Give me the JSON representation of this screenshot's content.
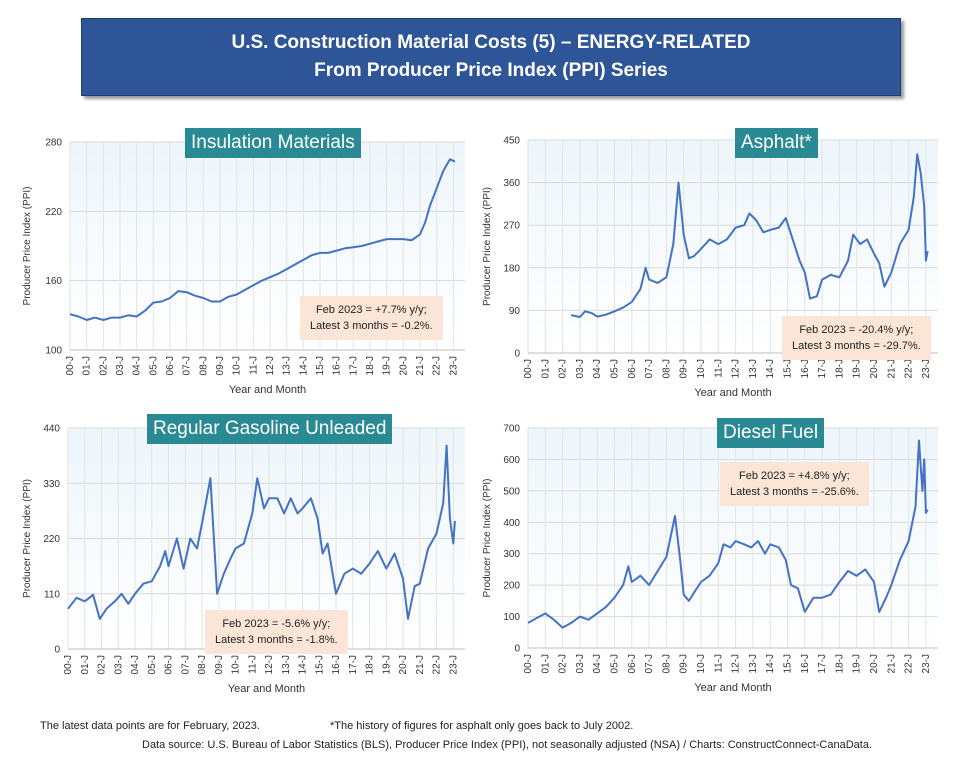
{
  "banner": {
    "line1": "U.S. Construction Material Costs (5) – ENERGY-RELATED",
    "line2": "From Producer Price Index (PPI) Series"
  },
  "footer": {
    "left": "The latest data points are for February, 2023.",
    "asterisk": "*The history of figures for asphalt only goes back to July 2002.",
    "source": "Data source: U.S. Bureau of Labor Statistics (BLS), Producer Price Index (PPI), not seasonally adjusted (NSA) / Charts: ConstructConnect-CanaData."
  },
  "colors": {
    "line": "#4472c4",
    "plot_bg_top": "#eef6fb",
    "plot_bg_bottom": "#ffffff",
    "title_bg": "#2a8a93",
    "note_bg": "#fbe5d6",
    "banner_bg": "#2e5597"
  },
  "chart_data": [
    {
      "type": "line",
      "title": "Insulation Materials",
      "xlabel": "Year and Month",
      "ylabel": "Producer Price Index (PPI)",
      "ylim": [
        100,
        280
      ],
      "yticks": [
        100,
        160,
        220,
        280
      ],
      "xticks": [
        "00-J",
        "01-J",
        "02-J",
        "03-J",
        "04-J",
        "05-J",
        "06-J",
        "07-J",
        "08-J",
        "09-J",
        "10-J",
        "11-J",
        "12-J",
        "13-J",
        "14-J",
        "15-J",
        "16-J",
        "17-J",
        "18-J",
        "19-J",
        "20-J",
        "21-J",
        "22-J",
        "23-J"
      ],
      "note": [
        "Feb 2023 = +7.7% y/y;",
        "Latest 3 months = -0.2%."
      ],
      "series": [
        {
          "points": [
            [
              2000.0,
              131
            ],
            [
              2000.5,
              129
            ],
            [
              2001.0,
              126
            ],
            [
              2001.5,
              128
            ],
            [
              2002.0,
              126
            ],
            [
              2002.5,
              128
            ],
            [
              2003.0,
              128
            ],
            [
              2003.5,
              130
            ],
            [
              2004.0,
              129
            ],
            [
              2004.5,
              134
            ],
            [
              2005.0,
              141
            ],
            [
              2005.5,
              142
            ],
            [
              2006.0,
              145
            ],
            [
              2006.5,
              151
            ],
            [
              2007.0,
              150
            ],
            [
              2007.5,
              147
            ],
            [
              2008.0,
              145
            ],
            [
              2008.5,
              142
            ],
            [
              2009.0,
              142
            ],
            [
              2009.5,
              146
            ],
            [
              2010.0,
              148
            ],
            [
              2010.5,
              152
            ],
            [
              2011.0,
              156
            ],
            [
              2011.5,
              160
            ],
            [
              2012.0,
              163
            ],
            [
              2012.5,
              166
            ],
            [
              2013.0,
              170
            ],
            [
              2013.5,
              174
            ],
            [
              2014.0,
              178
            ],
            [
              2014.5,
              182
            ],
            [
              2015.0,
              184
            ],
            [
              2015.5,
              184
            ],
            [
              2016.0,
              186
            ],
            [
              2016.5,
              188
            ],
            [
              2017.0,
              189
            ],
            [
              2017.5,
              190
            ],
            [
              2018.0,
              192
            ],
            [
              2018.5,
              194
            ],
            [
              2019.0,
              196
            ],
            [
              2019.5,
              196
            ],
            [
              2020.0,
              196
            ],
            [
              2020.5,
              195
            ],
            [
              2021.0,
              200
            ],
            [
              2021.3,
              210
            ],
            [
              2021.6,
              225
            ],
            [
              2022.0,
              240
            ],
            [
              2022.4,
              255
            ],
            [
              2022.8,
              265
            ],
            [
              2023.1,
              263
            ]
          ]
        }
      ]
    },
    {
      "type": "line",
      "title": "Asphalt*",
      "xlabel": "Year and Month",
      "ylabel": "Producer Price Index (PPI)",
      "ylim": [
        0,
        450
      ],
      "yticks": [
        0,
        90,
        180,
        270,
        360,
        450
      ],
      "xticks": [
        "00-J",
        "01-J",
        "02-J",
        "03-J",
        "04-J",
        "05-J",
        "06-J",
        "07-J",
        "08-J",
        "09-J",
        "10-J",
        "11-J",
        "12-J",
        "13-J",
        "14-J",
        "15-J",
        "16-J",
        "17-J",
        "18-J",
        "19-J",
        "20-J",
        "21-J",
        "22-J",
        "23-J"
      ],
      "note": [
        "Feb 2023 = -20.4% y/y;",
        "Latest 3 months = -29.7%."
      ],
      "series": [
        {
          "points": [
            [
              2002.5,
              80
            ],
            [
              2003.0,
              76
            ],
            [
              2003.3,
              88
            ],
            [
              2003.7,
              84
            ],
            [
              2004.0,
              77
            ],
            [
              2004.5,
              81
            ],
            [
              2005.0,
              88
            ],
            [
              2005.5,
              96
            ],
            [
              2006.0,
              108
            ],
            [
              2006.5,
              135
            ],
            [
              2006.8,
              180
            ],
            [
              2007.0,
              155
            ],
            [
              2007.5,
              148
            ],
            [
              2008.0,
              160
            ],
            [
              2008.4,
              230
            ],
            [
              2008.7,
              360
            ],
            [
              2009.0,
              250
            ],
            [
              2009.3,
              200
            ],
            [
              2009.6,
              205
            ],
            [
              2010.0,
              220
            ],
            [
              2010.5,
              240
            ],
            [
              2011.0,
              230
            ],
            [
              2011.5,
              240
            ],
            [
              2012.0,
              265
            ],
            [
              2012.5,
              270
            ],
            [
              2012.8,
              295
            ],
            [
              2013.2,
              280
            ],
            [
              2013.6,
              255
            ],
            [
              2014.0,
              260
            ],
            [
              2014.5,
              265
            ],
            [
              2014.9,
              285
            ],
            [
              2015.3,
              240
            ],
            [
              2015.7,
              195
            ],
            [
              2016.0,
              170
            ],
            [
              2016.3,
              115
            ],
            [
              2016.7,
              120
            ],
            [
              2017.0,
              155
            ],
            [
              2017.5,
              165
            ],
            [
              2018.0,
              160
            ],
            [
              2018.5,
              195
            ],
            [
              2018.8,
              250
            ],
            [
              2019.2,
              230
            ],
            [
              2019.6,
              240
            ],
            [
              2020.0,
              210
            ],
            [
              2020.3,
              190
            ],
            [
              2020.6,
              140
            ],
            [
              2021.0,
              170
            ],
            [
              2021.5,
              230
            ],
            [
              2022.0,
              260
            ],
            [
              2022.3,
              330
            ],
            [
              2022.5,
              420
            ],
            [
              2022.7,
              380
            ],
            [
              2022.9,
              310
            ],
            [
              2023.0,
              195
            ],
            [
              2023.1,
              215
            ]
          ]
        }
      ]
    },
    {
      "type": "line",
      "title": "Regular Gasoline Unleaded",
      "xlabel": "Year and Month",
      "ylabel": "Producer Price Index (PPI)",
      "ylim": [
        0,
        440
      ],
      "yticks": [
        0,
        110,
        220,
        330,
        440
      ],
      "xticks": [
        "00-J",
        "01-J",
        "02-J",
        "03-J",
        "04-J",
        "05-J",
        "06-J",
        "07-J",
        "08-J",
        "09-J",
        "10-J",
        "11-J",
        "12-J",
        "13-J",
        "14-J",
        "15-J",
        "16-J",
        "17-J",
        "18-J",
        "19-J",
        "20-J",
        "21-J",
        "22-J",
        "23-J"
      ],
      "note": [
        "Feb 2023 = -5.6% y/y;",
        "Latest 3 months = -1.8%."
      ],
      "series": [
        {
          "points": [
            [
              2000.0,
              80
            ],
            [
              2000.5,
              102
            ],
            [
              2001.0,
              95
            ],
            [
              2001.5,
              108
            ],
            [
              2001.9,
              60
            ],
            [
              2002.3,
              80
            ],
            [
              2002.8,
              95
            ],
            [
              2003.2,
              110
            ],
            [
              2003.6,
              90
            ],
            [
              2004.0,
              110
            ],
            [
              2004.5,
              130
            ],
            [
              2005.0,
              135
            ],
            [
              2005.5,
              165
            ],
            [
              2005.8,
              195
            ],
            [
              2006.0,
              165
            ],
            [
              2006.5,
              220
            ],
            [
              2006.9,
              160
            ],
            [
              2007.3,
              220
            ],
            [
              2007.7,
              200
            ],
            [
              2008.0,
              250
            ],
            [
              2008.5,
              340
            ],
            [
              2008.9,
              110
            ],
            [
              2009.3,
              150
            ],
            [
              2009.7,
              180
            ],
            [
              2010.0,
              200
            ],
            [
              2010.5,
              210
            ],
            [
              2011.0,
              270
            ],
            [
              2011.3,
              340
            ],
            [
              2011.7,
              280
            ],
            [
              2012.0,
              300
            ],
            [
              2012.5,
              300
            ],
            [
              2012.9,
              270
            ],
            [
              2013.3,
              300
            ],
            [
              2013.7,
              270
            ],
            [
              2014.0,
              280
            ],
            [
              2014.5,
              300
            ],
            [
              2014.9,
              260
            ],
            [
              2015.2,
              190
            ],
            [
              2015.5,
              210
            ],
            [
              2016.0,
              110
            ],
            [
              2016.5,
              150
            ],
            [
              2017.0,
              160
            ],
            [
              2017.5,
              150
            ],
            [
              2018.0,
              170
            ],
            [
              2018.5,
              195
            ],
            [
              2019.0,
              160
            ],
            [
              2019.5,
              190
            ],
            [
              2020.0,
              140
            ],
            [
              2020.3,
              60
            ],
            [
              2020.7,
              125
            ],
            [
              2021.0,
              130
            ],
            [
              2021.5,
              200
            ],
            [
              2022.0,
              230
            ],
            [
              2022.4,
              290
            ],
            [
              2022.6,
              405
            ],
            [
              2022.8,
              260
            ],
            [
              2023.0,
              210
            ],
            [
              2023.1,
              255
            ]
          ]
        }
      ]
    },
    {
      "type": "line",
      "title": "Diesel Fuel",
      "xlabel": "Year and Month",
      "ylabel": "Producer Price Index (PPI)",
      "ylim": [
        0,
        700
      ],
      "yticks": [
        0,
        100,
        200,
        300,
        400,
        500,
        600,
        700
      ],
      "xticks": [
        "00-J",
        "01-J",
        "02-J",
        "03-J",
        "04-J",
        "05-J",
        "06-J",
        "07-J",
        "08-J",
        "09-J",
        "10-J",
        "11-J",
        "12-J",
        "13-J",
        "14-J",
        "15-J",
        "16-J",
        "17-J",
        "18-J",
        "19-J",
        "20-J",
        "21-J",
        "22-J",
        "23-J"
      ],
      "note": [
        "Feb 2023 = +4.8% y/y;",
        "Latest 3 months = -25.6%."
      ],
      "series": [
        {
          "points": [
            [
              2000.0,
              80
            ],
            [
              2000.5,
              95
            ],
            [
              2001.0,
              110
            ],
            [
              2001.5,
              90
            ],
            [
              2002.0,
              65
            ],
            [
              2002.5,
              80
            ],
            [
              2003.0,
              100
            ],
            [
              2003.5,
              90
            ],
            [
              2004.0,
              110
            ],
            [
              2004.5,
              130
            ],
            [
              2005.0,
              160
            ],
            [
              2005.5,
              200
            ],
            [
              2005.8,
              260
            ],
            [
              2006.0,
              210
            ],
            [
              2006.5,
              230
            ],
            [
              2007.0,
              200
            ],
            [
              2007.5,
              245
            ],
            [
              2008.0,
              290
            ],
            [
              2008.5,
              420
            ],
            [
              2008.8,
              280
            ],
            [
              2009.0,
              170
            ],
            [
              2009.3,
              150
            ],
            [
              2009.7,
              185
            ],
            [
              2010.0,
              210
            ],
            [
              2010.5,
              230
            ],
            [
              2011.0,
              270
            ],
            [
              2011.3,
              330
            ],
            [
              2011.7,
              320
            ],
            [
              2012.0,
              340
            ],
            [
              2012.5,
              330
            ],
            [
              2012.9,
              320
            ],
            [
              2013.3,
              340
            ],
            [
              2013.7,
              300
            ],
            [
              2014.0,
              330
            ],
            [
              2014.5,
              320
            ],
            [
              2014.9,
              280
            ],
            [
              2015.2,
              200
            ],
            [
              2015.6,
              190
            ],
            [
              2016.0,
              115
            ],
            [
              2016.5,
              160
            ],
            [
              2017.0,
              160
            ],
            [
              2017.5,
              170
            ],
            [
              2018.0,
              210
            ],
            [
              2018.5,
              245
            ],
            [
              2019.0,
              230
            ],
            [
              2019.5,
              250
            ],
            [
              2020.0,
              210
            ],
            [
              2020.3,
              115
            ],
            [
              2020.7,
              160
            ],
            [
              2021.0,
              200
            ],
            [
              2021.5,
              280
            ],
            [
              2022.0,
              340
            ],
            [
              2022.4,
              450
            ],
            [
              2022.6,
              660
            ],
            [
              2022.8,
              500
            ],
            [
              2022.9,
              600
            ],
            [
              2023.0,
              430
            ],
            [
              2023.1,
              440
            ]
          ]
        }
      ]
    }
  ]
}
